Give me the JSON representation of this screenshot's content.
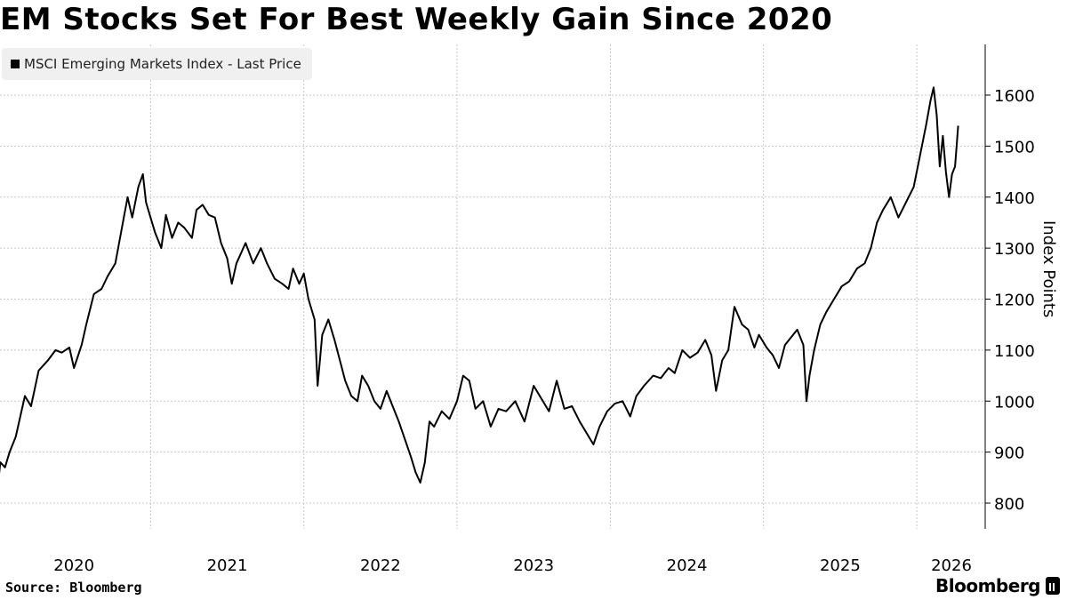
{
  "chart_data": {
    "type": "line",
    "title": "EM Stocks Set For Best Weekly Gain Since 2020",
    "ylabel": "Index Points",
    "xlabel": "",
    "ylim": [
      750,
      1700
    ],
    "xlim": [
      2020.0,
      2026.2
    ],
    "y_ticks": [
      800,
      900,
      1000,
      1100,
      1200,
      1300,
      1400,
      1500,
      1600
    ],
    "x_ticks": [
      "2020",
      "2021",
      "2022",
      "2023",
      "2024",
      "2025",
      "2026"
    ],
    "grid": true,
    "legend_position": "top-left",
    "series": [
      {
        "name": "MSCI Emerging Markets Index - Last Price",
        "color": "#000000",
        "points": [
          [
            2020.0,
            825
          ],
          [
            2020.02,
            880
          ],
          [
            2020.05,
            870
          ],
          [
            2020.08,
            900
          ],
          [
            2020.12,
            930
          ],
          [
            2020.18,
            1010
          ],
          [
            2020.22,
            990
          ],
          [
            2020.27,
            1060
          ],
          [
            2020.33,
            1080
          ],
          [
            2020.38,
            1100
          ],
          [
            2020.42,
            1095
          ],
          [
            2020.47,
            1105
          ],
          [
            2020.5,
            1065
          ],
          [
            2020.55,
            1110
          ],
          [
            2020.58,
            1150
          ],
          [
            2020.63,
            1210
          ],
          [
            2020.68,
            1220
          ],
          [
            2020.72,
            1245
          ],
          [
            2020.77,
            1270
          ],
          [
            2020.81,
            1335
          ],
          [
            2020.85,
            1400
          ],
          [
            2020.88,
            1360
          ],
          [
            2020.92,
            1420
          ],
          [
            2020.95,
            1445
          ],
          [
            2020.97,
            1390
          ],
          [
            2021.0,
            1360
          ],
          [
            2021.03,
            1330
          ],
          [
            2021.07,
            1300
          ],
          [
            2021.1,
            1365
          ],
          [
            2021.14,
            1320
          ],
          [
            2021.18,
            1350
          ],
          [
            2021.22,
            1340
          ],
          [
            2021.27,
            1320
          ],
          [
            2021.3,
            1375
          ],
          [
            2021.34,
            1385
          ],
          [
            2021.38,
            1365
          ],
          [
            2021.42,
            1360
          ],
          [
            2021.46,
            1310
          ],
          [
            2021.5,
            1280
          ],
          [
            2021.53,
            1230
          ],
          [
            2021.56,
            1270
          ],
          [
            2021.62,
            1310
          ],
          [
            2021.67,
            1270
          ],
          [
            2021.72,
            1300
          ],
          [
            2021.76,
            1270
          ],
          [
            2021.81,
            1240
          ],
          [
            2021.86,
            1230
          ],
          [
            2021.9,
            1220
          ],
          [
            2021.93,
            1260
          ],
          [
            2021.97,
            1230
          ],
          [
            2022.0,
            1250
          ],
          [
            2022.03,
            1200
          ],
          [
            2022.07,
            1160
          ],
          [
            2022.09,
            1030
          ],
          [
            2022.12,
            1130
          ],
          [
            2022.16,
            1160
          ],
          [
            2022.2,
            1120
          ],
          [
            2022.24,
            1075
          ],
          [
            2022.27,
            1040
          ],
          [
            2022.31,
            1010
          ],
          [
            2022.35,
            1000
          ],
          [
            2022.38,
            1050
          ],
          [
            2022.42,
            1030
          ],
          [
            2022.46,
            1000
          ],
          [
            2022.5,
            985
          ],
          [
            2022.54,
            1020
          ],
          [
            2022.58,
            990
          ],
          [
            2022.62,
            960
          ],
          [
            2022.66,
            925
          ],
          [
            2022.7,
            890
          ],
          [
            2022.73,
            860
          ],
          [
            2022.76,
            840
          ],
          [
            2022.79,
            880
          ],
          [
            2022.82,
            960
          ],
          [
            2022.85,
            950
          ],
          [
            2022.9,
            980
          ],
          [
            2022.95,
            965
          ],
          [
            2023.0,
            1000
          ],
          [
            2023.04,
            1050
          ],
          [
            2023.08,
            1040
          ],
          [
            2023.12,
            985
          ],
          [
            2023.17,
            1000
          ],
          [
            2023.22,
            950
          ],
          [
            2023.27,
            985
          ],
          [
            2023.32,
            980
          ],
          [
            2023.38,
            1000
          ],
          [
            2023.44,
            960
          ],
          [
            2023.5,
            1030
          ],
          [
            2023.55,
            1005
          ],
          [
            2023.6,
            980
          ],
          [
            2023.65,
            1040
          ],
          [
            2023.7,
            985
          ],
          [
            2023.75,
            990
          ],
          [
            2023.8,
            960
          ],
          [
            2023.85,
            935
          ],
          [
            2023.89,
            915
          ],
          [
            2023.93,
            950
          ],
          [
            2023.98,
            980
          ],
          [
            2024.03,
            995
          ],
          [
            2024.08,
            1000
          ],
          [
            2024.13,
            970
          ],
          [
            2024.17,
            1010
          ],
          [
            2024.22,
            1030
          ],
          [
            2024.28,
            1050
          ],
          [
            2024.33,
            1045
          ],
          [
            2024.38,
            1065
          ],
          [
            2024.42,
            1055
          ],
          [
            2024.47,
            1100
          ],
          [
            2024.52,
            1085
          ],
          [
            2024.57,
            1095
          ],
          [
            2024.62,
            1120
          ],
          [
            2024.66,
            1090
          ],
          [
            2024.69,
            1020
          ],
          [
            2024.73,
            1080
          ],
          [
            2024.77,
            1100
          ],
          [
            2024.81,
            1185
          ],
          [
            2024.86,
            1150
          ],
          [
            2024.9,
            1140
          ],
          [
            2024.94,
            1105
          ],
          [
            2024.97,
            1130
          ],
          [
            2025.02,
            1105
          ],
          [
            2025.06,
            1090
          ],
          [
            2025.1,
            1065
          ],
          [
            2025.14,
            1110
          ],
          [
            2025.18,
            1125
          ],
          [
            2025.22,
            1140
          ],
          [
            2025.26,
            1110
          ],
          [
            2025.28,
            1000
          ],
          [
            2025.3,
            1050
          ],
          [
            2025.33,
            1100
          ],
          [
            2025.37,
            1150
          ],
          [
            2025.41,
            1175
          ],
          [
            2025.46,
            1200
          ],
          [
            2025.51,
            1225
          ],
          [
            2025.56,
            1235
          ],
          [
            2025.61,
            1260
          ],
          [
            2025.66,
            1270
          ],
          [
            2025.7,
            1300
          ],
          [
            2025.74,
            1350
          ],
          [
            2025.78,
            1375
          ],
          [
            2025.83,
            1400
          ],
          [
            2025.88,
            1360
          ],
          [
            2025.93,
            1390
          ],
          [
            2025.98,
            1420
          ],
          [
            2026.02,
            1480
          ],
          [
            2026.06,
            1540
          ],
          [
            2026.09,
            1590
          ],
          [
            2026.11,
            1615
          ],
          [
            2026.13,
            1560
          ],
          [
            2026.15,
            1460
          ],
          [
            2026.17,
            1520
          ],
          [
            2026.19,
            1450
          ],
          [
            2026.21,
            1400
          ],
          [
            2026.23,
            1445
          ],
          [
            2026.25,
            1460
          ],
          [
            2026.27,
            1540
          ]
        ]
      }
    ],
    "source": "Source: Bloomberg",
    "brand": "Bloomberg"
  },
  "style": {
    "line_color": "#000000",
    "grid_color": "#c8c8c8",
    "axis_color": "#000000",
    "legend_bg": "#f0f0f0"
  },
  "icons": {
    "brand_logo": "bloomberg-logo-icon",
    "legend_swatch": "square-swatch-icon"
  }
}
